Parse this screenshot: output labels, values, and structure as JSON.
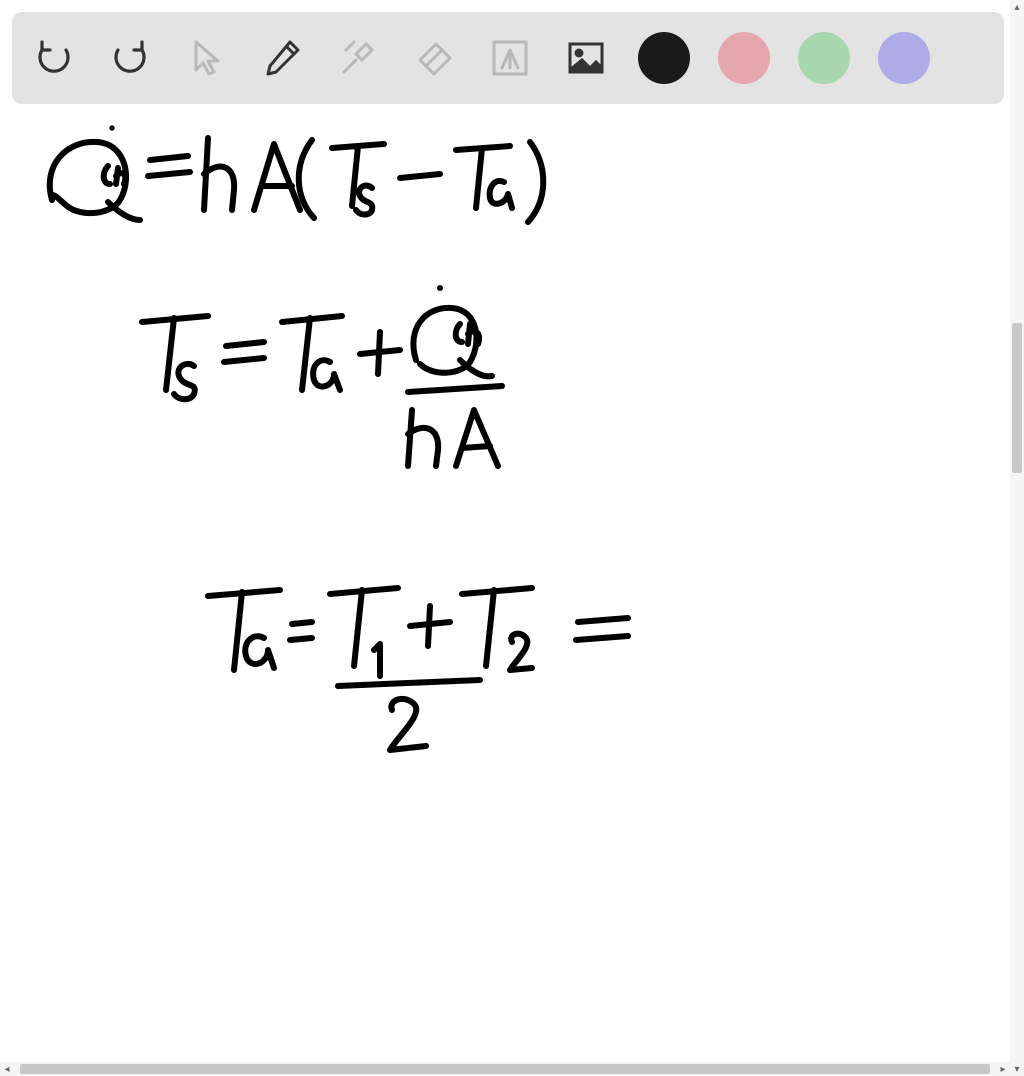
{
  "toolbar": {
    "background_color": "#e3e3e3",
    "icon_stroke_active": "#333333",
    "icon_stroke_disabled": "#b8b8b8",
    "tools": {
      "undo": {
        "name": "undo-icon",
        "interactable": true,
        "active": true
      },
      "redo": {
        "name": "redo-icon",
        "interactable": true,
        "active": true
      },
      "pointer": {
        "name": "pointer-icon",
        "interactable": true,
        "active": false
      },
      "pencil": {
        "name": "pencil-icon",
        "interactable": true,
        "active": true
      },
      "tools_wrench": {
        "name": "wrench-icon",
        "interactable": true,
        "active": false
      },
      "eraser": {
        "name": "eraser-icon",
        "interactable": true,
        "active": false
      },
      "text": {
        "name": "text-box-icon",
        "interactable": true,
        "active": false
      },
      "image": {
        "name": "image-icon",
        "interactable": true,
        "active": true
      }
    },
    "colors": [
      {
        "name": "color-black",
        "hex": "#1a1a1a"
      },
      {
        "name": "color-pink",
        "hex": "#e5a6ac"
      },
      {
        "name": "color-green",
        "hex": "#a9d7ad"
      },
      {
        "name": "color-purple",
        "hex": "#aeace8"
      }
    ]
  },
  "canvas": {
    "background_color": "#ffffff",
    "ink_color": "#000000",
    "stroke_width": 6,
    "handwriting": {
      "line1": "Q̇cv = hA(Ts − Ta)",
      "line2": "Ts = Ta + Q̇cv / hA",
      "line3": "Ta = (T1 + T2) / 2 ="
    }
  },
  "scroll": {
    "vertical": {
      "thumb_top_pct": 30,
      "thumb_height_pct": 14
    },
    "horizontal": {
      "thumb_left_pct": 2,
      "thumb_width_pct": 96
    }
  }
}
